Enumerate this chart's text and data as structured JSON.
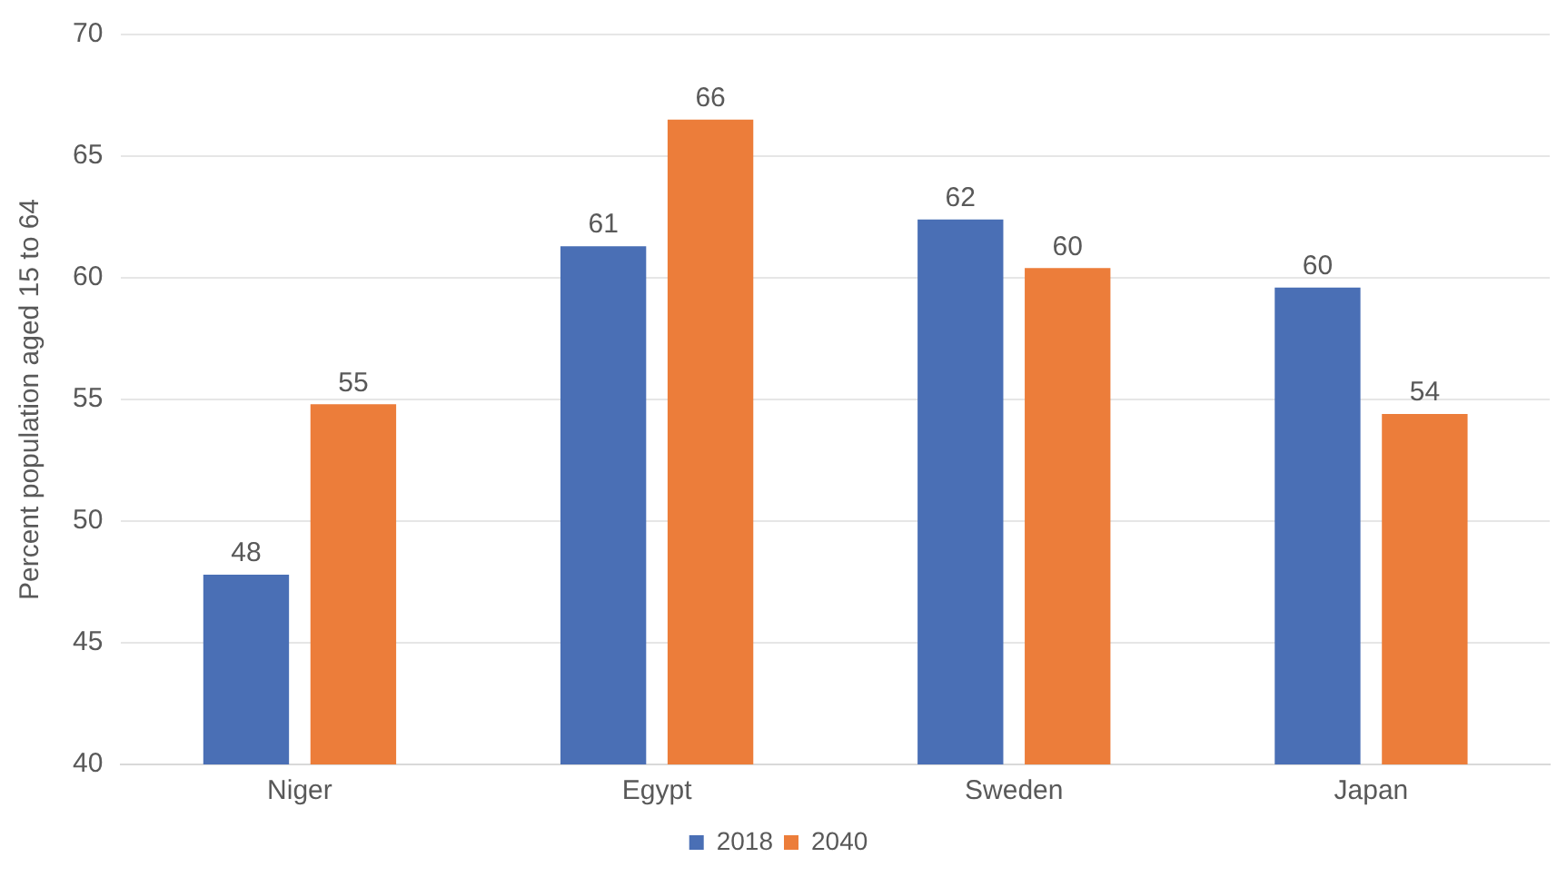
{
  "chart_data": {
    "type": "bar",
    "ylabel": "Percent population aged 15 to 64",
    "categories": [
      "Niger",
      "Egypt",
      "Sweden",
      "Japan"
    ],
    "series": [
      {
        "name": "2018",
        "color": "#4a6fb5",
        "values": [
          47.8,
          61.3,
          62.4,
          59.6
        ],
        "value_labels": [
          "48",
          "61",
          "62",
          "60"
        ]
      },
      {
        "name": "2040",
        "color": "#ec7d3a",
        "values": [
          54.8,
          66.5,
          60.4,
          54.4
        ],
        "value_labels": [
          "55",
          "66",
          "60",
          "54"
        ]
      }
    ],
    "ylim": [
      40,
      70
    ],
    "yticks": [
      40,
      45,
      50,
      55,
      60,
      65,
      70
    ],
    "grid": "y",
    "legend": "bottom"
  }
}
